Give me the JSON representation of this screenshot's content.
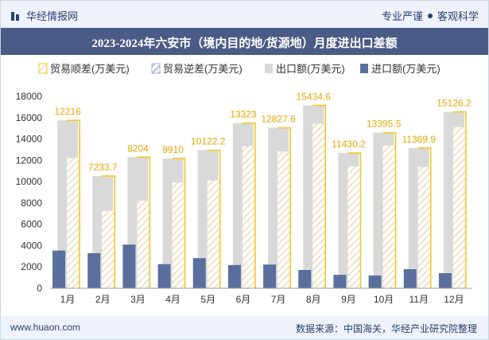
{
  "header": {
    "brand": "华经情报网",
    "tag1": "专业严谨",
    "tag2": "客观科学"
  },
  "title": "2023-2024年六安市（境内目的地/货源地）月度进出口差额",
  "footer": {
    "website": "www.huaon.com",
    "source": "数据来源：中国海关，华经产业研究院整理"
  },
  "colors": {
    "surplus": "#f5c518",
    "deficit": "#9fb3cf",
    "export": "#d9d9d9",
    "import": "#5b6f9e",
    "header_bg": "#4a5b85"
  },
  "chart_data": {
    "type": "bar",
    "categories": [
      "1月",
      "2月",
      "3月",
      "4月",
      "5月",
      "6月",
      "7月",
      "8月",
      "9月",
      "10月",
      "11月",
      "12月"
    ],
    "series": [
      {
        "name": "贸易顺差(万美元)",
        "values": [
          12216,
          7233.7,
          8204,
          9910,
          10122.2,
          13323,
          12827.6,
          15434.6,
          11430.2,
          13395.5,
          11369.9,
          15126.2
        ]
      },
      {
        "name": "贸易逆差(万美元)",
        "values": [
          0,
          0,
          0,
          0,
          0,
          0,
          0,
          0,
          0,
          0,
          0,
          0
        ]
      },
      {
        "name": "出口额(万美元)",
        "values": [
          15750,
          10530,
          12300,
          12170,
          12950,
          15500,
          15050,
          17150,
          12690,
          14590,
          13160,
          16540
        ]
      },
      {
        "name": "进口额(万美元)",
        "values": [
          3534,
          3296,
          4096,
          2260,
          2828,
          2177,
          2222,
          1715,
          1260,
          1195,
          1790,
          1414
        ]
      }
    ],
    "data_labels": [
      "12216",
      "7233.7",
      "8204",
      "9910",
      "10122.2",
      "13323",
      "12827.6",
      "15434.6",
      "11430.2",
      "13395.5",
      "11369.9",
      "15126.2"
    ],
    "ylim": [
      0,
      18000
    ],
    "yticks": [
      "0",
      "2000",
      "4000",
      "6000",
      "8000",
      "10000",
      "12000",
      "14000",
      "16000",
      "18000"
    ],
    "legend_position": "top",
    "grid": false
  }
}
